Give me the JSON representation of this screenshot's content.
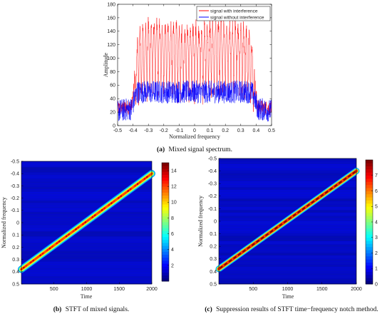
{
  "chart_data": [
    {
      "type": "line",
      "ylabel": "Amplitude",
      "xlabel": "Normalized frequency",
      "xlim": [
        -0.5,
        0.5
      ],
      "ylim": [
        0,
        180
      ],
      "x_ticks": [
        "-0.5",
        "-0.4",
        "-0.3",
        "-0.2",
        "-0.1",
        "0",
        "0.1",
        "0.2",
        "0.3",
        "0.4",
        "0.5"
      ],
      "y_ticks": [
        "0",
        "20",
        "40",
        "60",
        "80",
        "100",
        "120",
        "140",
        "160",
        "180"
      ],
      "legend_position": "top-right",
      "series": [
        {
          "name": "signal with interference",
          "color": "#ff0000",
          "profile_x": [
            -0.5,
            -0.41,
            -0.39,
            -0.37,
            -0.3,
            0.0,
            0.1,
            0.3,
            0.37,
            0.39,
            0.41,
            0.5
          ],
          "profile_y": [
            25,
            28,
            60,
            110,
            125,
            120,
            125,
            125,
            110,
            60,
            28,
            25
          ]
        },
        {
          "name": "signal without interference",
          "color": "#0000ff",
          "profile_x": [
            -0.5,
            -0.41,
            -0.39,
            -0.37,
            0.37,
            0.39,
            0.41,
            0.5
          ],
          "profile_y": [
            22,
            25,
            40,
            50,
            50,
            40,
            25,
            22
          ]
        }
      ],
      "caption_label": "(a)",
      "caption_text": "Mixed signal spectrum."
    },
    {
      "type": "heatmap",
      "xlabel": "Time",
      "ylabel": "Normalized frequency",
      "xlim": [
        0,
        2000
      ],
      "ylim": [
        -0.5,
        0.5
      ],
      "x_ticks": [
        "500",
        "1000",
        "1500",
        "2000"
      ],
      "y_ticks": [
        "-0.5",
        "-0.4",
        "-0.3",
        "-0.2",
        "-0.1",
        "0",
        "0.1",
        "0.2",
        "0.3",
        "0.4",
        "0.5"
      ],
      "line_start": [
        0,
        0.38
      ],
      "line_end": [
        2000,
        -0.4
      ],
      "colorbar_range": [
        0,
        15
      ],
      "colorbar_ticks": [
        "2",
        "4",
        "6",
        "8",
        "10",
        "12",
        "14"
      ],
      "peak_value": 14,
      "caption_label": "(b)",
      "caption_text": "STFT of mixed signals."
    },
    {
      "type": "heatmap",
      "xlabel": "Time",
      "ylabel": "Normalized frequency",
      "xlim": [
        0,
        2000
      ],
      "ylim": [
        -0.5,
        0.5
      ],
      "x_ticks": [
        "500",
        "1000",
        "1500",
        "2000"
      ],
      "y_ticks": [
        "-0.5",
        "-0.4",
        "-0.3",
        "-0.2",
        "-0.1",
        "0",
        "0.1",
        "0.2",
        "0.3",
        "0.4",
        "0.5"
      ],
      "line_start": [
        0,
        0.38
      ],
      "line_end": [
        2000,
        -0.4
      ],
      "colorbar_range": [
        0,
        8
      ],
      "colorbar_ticks": [
        "0",
        "1",
        "2",
        "3",
        "4",
        "5",
        "6",
        "7"
      ],
      "peak_value": 7.5,
      "caption_label": "(c)",
      "caption_text": "Suppression results of STFT time−frequency notch method."
    }
  ]
}
